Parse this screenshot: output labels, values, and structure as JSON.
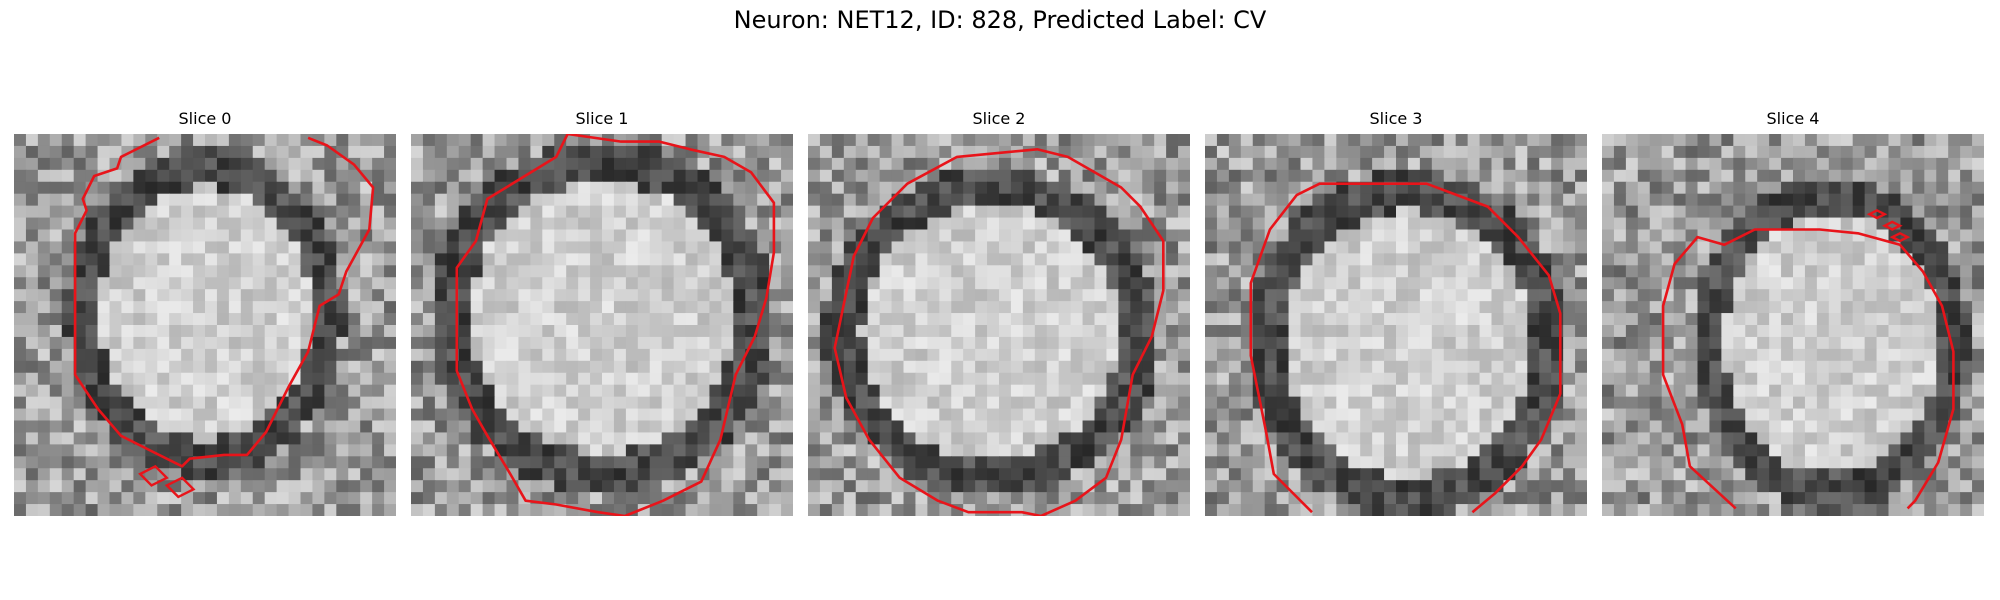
{
  "figure": {
    "title": "Neuron: NET12, ID: 828, Predicted Label: CV"
  },
  "panels": [
    {
      "label": "Slice 0"
    },
    {
      "label": "Slice 1"
    },
    {
      "label": "Slice 2"
    },
    {
      "label": "Slice 3"
    },
    {
      "label": "Slice 4"
    }
  ],
  "colors": {
    "background": "#ffffff",
    "contour": "#e8141a",
    "image_dark": "#000000",
    "image_light": "#ffffff"
  }
}
